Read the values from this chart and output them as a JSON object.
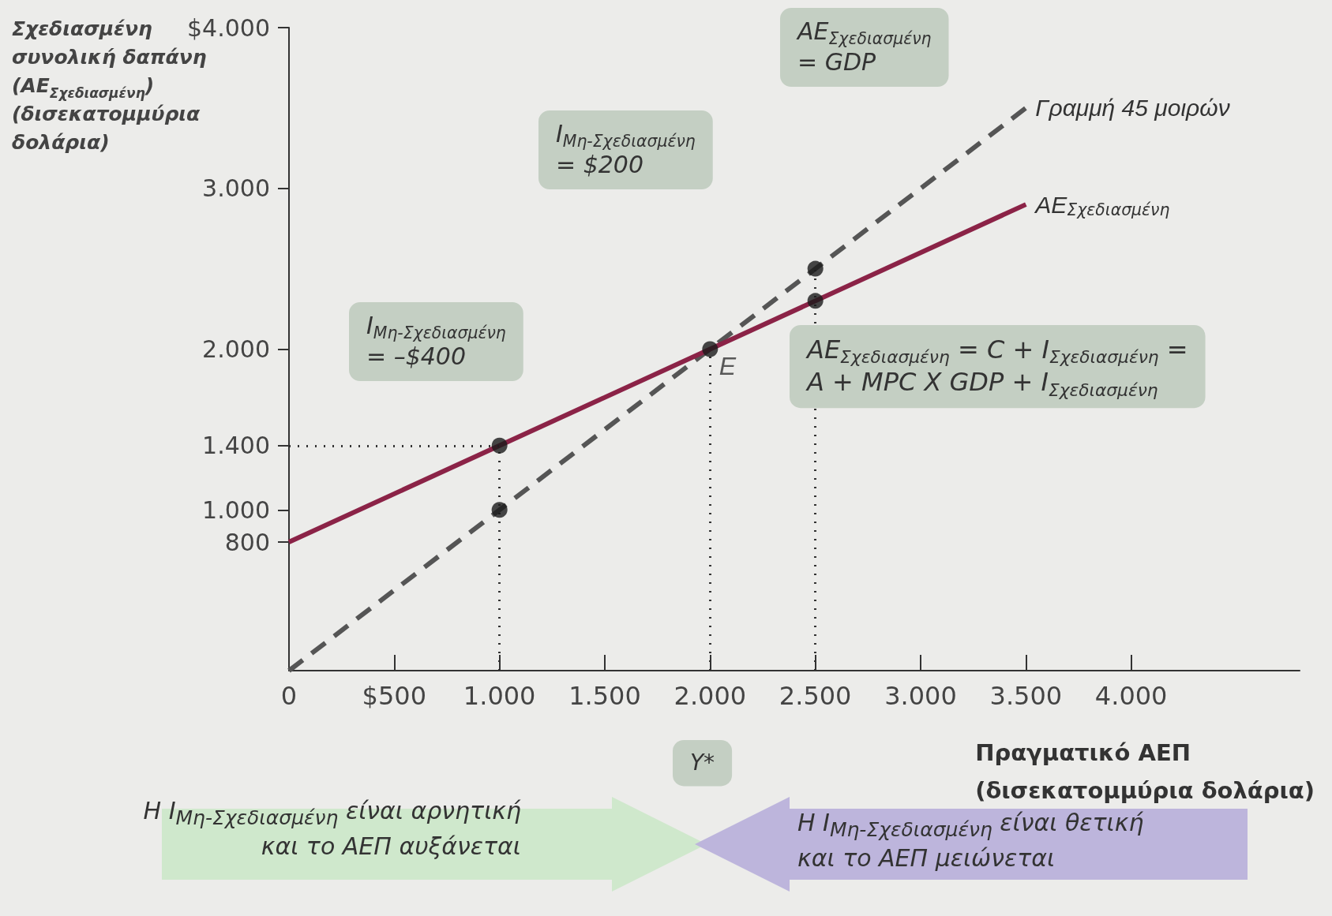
{
  "chart_data": {
    "type": "line",
    "xlabel": "Πραγματικό ΑΕΠ\n(δισεκατομμύρια δολάρια)",
    "ylabel": "Σχεδιασμένη\nσυνολική δαπάνη\n(AE$_{Σχεδιασμένη}$)\n(δισεκατομμύρια\nδολάρια)",
    "xlim": [
      0,
      4800
    ],
    "ylim": [
      0,
      4000
    ],
    "xticks": [
      {
        "value": 0,
        "label": "0"
      },
      {
        "value": 500,
        "label": "$500"
      },
      {
        "value": 1000,
        "label": "1.000"
      },
      {
        "value": 1500,
        "label": "1.500"
      },
      {
        "value": 2000,
        "label": "2.000"
      },
      {
        "value": 2500,
        "label": "2.500"
      },
      {
        "value": 3000,
        "label": "3.000"
      },
      {
        "value": 3500,
        "label": "3.500"
      },
      {
        "value": 4000,
        "label": "4.000"
      }
    ],
    "yticks": [
      {
        "value": 800,
        "label": "800"
      },
      {
        "value": 1000,
        "label": "1.000"
      },
      {
        "value": 1400,
        "label": "1.400"
      },
      {
        "value": 2000,
        "label": "2.000"
      },
      {
        "value": 3000,
        "label": "3.000"
      },
      {
        "value": 4000,
        "label": "$4.000"
      }
    ],
    "series": [
      {
        "name": "Γραμμή 45 μοιρών",
        "color": "#555555",
        "line_style": "dashed",
        "x": [
          0,
          3500
        ],
        "values": [
          0,
          3500
        ]
      },
      {
        "name": "AE$_{Σχεδιασμένη}$",
        "color": "#8b2347",
        "line_style": "solid",
        "x": [
          0,
          3500
        ],
        "values": [
          800,
          2900
        ]
      },
      {
        "type": "scatter",
        "color": "#1a1a1a",
        "marker": "circle",
        "x": [
          1000,
          1000,
          2000,
          2500,
          2500
        ],
        "values": [
          1400,
          1000,
          2000,
          2500,
          2300
        ]
      }
    ],
    "ref_lines": [
      {
        "axis": "x",
        "value": 1000,
        "color": "#333333",
        "line_style": "dotted"
      },
      {
        "axis": "x",
        "value": 2000,
        "color": "#333333",
        "line_style": "dotted"
      },
      {
        "axis": "x",
        "value": 2500,
        "color": "#333333",
        "line_style": "dotted"
      },
      {
        "axis": "y",
        "value": 1400,
        "color": "#333333",
        "line_style": "dotted"
      }
    ],
    "annotations": [
      "AE$_{Σχεδιασμένη}$\n= GDP",
      "I$_{Μη-Σχεδιασμένη}$\n= $200",
      "I$_{Μη-Σχεδιασμένη}$\n= –$400",
      "AE$_{Σχεδιασμένη}$ = C + I$_{Σχεδιασμένη}$ =\nA + MPC X GDP + I$_{Σχεδιασμένη}$",
      "Y*",
      "Η I$_{Μη-Σχεδιασμένη}$ είναι αρνητική\nκαι το ΑΕΠ αυξάνεται",
      "Η I$_{Μη-Σχεδιασμένη}$ είναι θετική\nκαι το ΑΕΠ μειώνεται",
      {
        "text": "E",
        "x": 2000,
        "y": 2000
      }
    ],
    "grid": false,
    "legend": false
  }
}
